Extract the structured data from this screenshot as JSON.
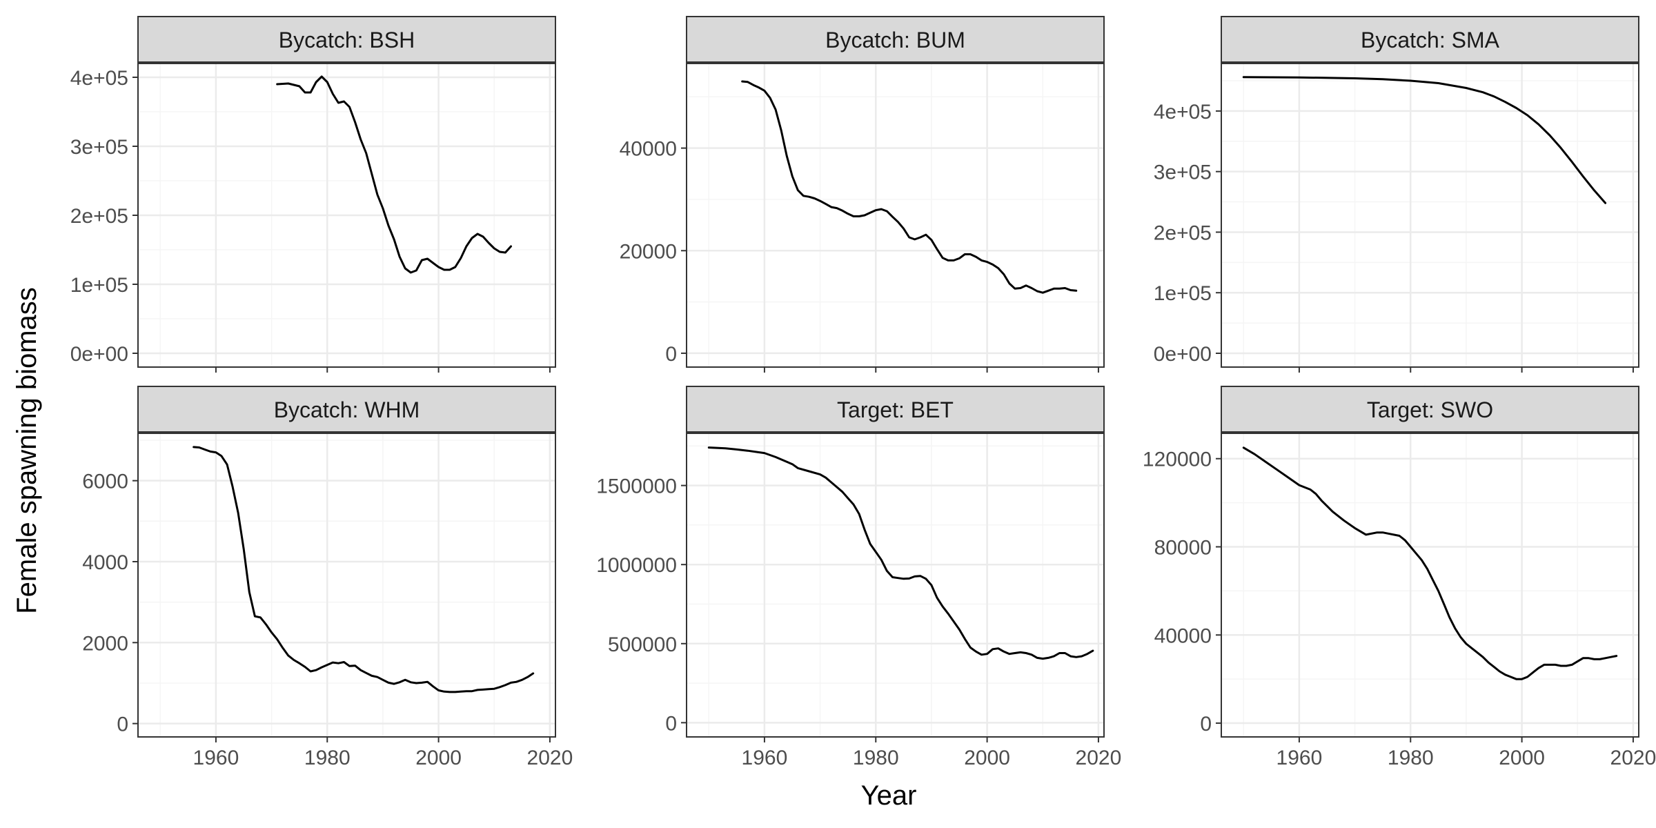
{
  "figure": {
    "ylabel": "Female spawning biomass",
    "xlabel": "Year"
  },
  "colors": {
    "line": "#000000",
    "strip_fill": "#d9d9d9",
    "strip_border": "#333333",
    "panel_border": "#333333",
    "grid_major": "#ebebeb",
    "grid_minor": "#f5f5f5",
    "tick_label": "#4d4d4d"
  },
  "chart_data": [
    {
      "type": "line",
      "title": "Bycatch: BSH",
      "xlim": [
        1946,
        2021
      ],
      "ylim": [
        -20000,
        420000
      ],
      "x_ticks": [
        1960,
        1980,
        2000,
        2020
      ],
      "y_ticks": [
        0,
        100000,
        200000,
        300000,
        400000
      ],
      "y_tick_labels": [
        "0e+00",
        "1e+05",
        "2e+05",
        "3e+05",
        "4e+05"
      ],
      "grid": true,
      "show_x_axis_labels": false,
      "x": [
        1971,
        1973,
        1975,
        1976,
        1977,
        1978,
        1979,
        1980,
        1981,
        1982,
        1983,
        1984,
        1985,
        1986,
        1987,
        1988,
        1989,
        1990,
        1991,
        1992,
        1993,
        1994,
        1995,
        1996,
        1997,
        1998,
        1999,
        2000,
        2001,
        2002,
        2003,
        2004,
        2005,
        2006,
        2007,
        2008,
        2009,
        2010,
        2011,
        2012,
        2013
      ],
      "y": [
        390000,
        391000,
        387000,
        378000,
        378000,
        393000,
        401000,
        393000,
        376000,
        363000,
        365000,
        357000,
        335000,
        310000,
        290000,
        260000,
        230000,
        210000,
        185000,
        165000,
        140000,
        123000,
        117000,
        120000,
        135000,
        137000,
        131000,
        125000,
        121000,
        121000,
        125000,
        138000,
        155000,
        167000,
        173000,
        169000,
        160000,
        152000,
        147000,
        146000,
        155000
      ]
    },
    {
      "type": "line",
      "title": "Bycatch: BUM",
      "xlim": [
        1946,
        2021
      ],
      "ylim": [
        -2700,
        56500
      ],
      "x_ticks": [
        1960,
        1980,
        2000,
        2020
      ],
      "y_ticks": [
        0,
        20000,
        40000
      ],
      "y_tick_labels": [
        "0",
        "20000",
        "40000"
      ],
      "grid": true,
      "show_x_axis_labels": false,
      "x": [
        1956,
        1957,
        1958,
        1959,
        1960,
        1961,
        1962,
        1963,
        1964,
        1965,
        1966,
        1967,
        1968,
        1969,
        1970,
        1971,
        1972,
        1973,
        1974,
        1975,
        1976,
        1977,
        1978,
        1979,
        1980,
        1981,
        1982,
        1983,
        1984,
        1985,
        1986,
        1987,
        1988,
        1989,
        1990,
        1991,
        1992,
        1993,
        1994,
        1995,
        1996,
        1997,
        1998,
        1999,
        2000,
        2001,
        2002,
        2003,
        2004,
        2005,
        2006,
        2007,
        2008,
        2009,
        2010,
        2011,
        2012,
        2013,
        2014,
        2015,
        2016
      ],
      "y": [
        53000,
        52900,
        52300,
        51800,
        51200,
        49800,
        47500,
        43500,
        38500,
        34500,
        31800,
        30700,
        30500,
        30200,
        29700,
        29100,
        28500,
        28300,
        27800,
        27200,
        26700,
        26700,
        26900,
        27400,
        27900,
        28100,
        27700,
        26600,
        25600,
        24300,
        22600,
        22200,
        22600,
        23100,
        22100,
        20300,
        18600,
        18100,
        18100,
        18500,
        19300,
        19300,
        18800,
        18100,
        17800,
        17300,
        16600,
        15400,
        13600,
        12600,
        12700,
        13200,
        12700,
        12100,
        11800,
        12200,
        12600,
        12600,
        12700,
        12300,
        12200
      ]
    },
    {
      "type": "line",
      "title": "Bycatch: SMA",
      "xlim": [
        1946,
        2021
      ],
      "ylim": [
        -22800,
        478500
      ],
      "x_ticks": [
        1960,
        1980,
        2000,
        2020
      ],
      "y_ticks": [
        0,
        100000,
        200000,
        300000,
        400000
      ],
      "y_tick_labels": [
        "0e+00",
        "1e+05",
        "2e+05",
        "3e+05",
        "4e+05"
      ],
      "grid": true,
      "show_x_axis_labels": false,
      "x": [
        1950,
        1960,
        1970,
        1975,
        1980,
        1985,
        1990,
        1993,
        1995,
        1997,
        1999,
        2001,
        2003,
        2005,
        2007,
        2009,
        2011,
        2013,
        2015
      ],
      "y": [
        456000,
        455500,
        454000,
        452500,
        450000,
        446000,
        438000,
        431000,
        424000,
        415000,
        405000,
        393000,
        378000,
        360000,
        339000,
        316000,
        292000,
        269000,
        248000
      ]
    },
    {
      "type": "line",
      "title": "Bycatch: WHM",
      "xlim": [
        1946,
        2021
      ],
      "ylim": [
        -330,
        7170
      ],
      "x_ticks": [
        1960,
        1980,
        2000,
        2020
      ],
      "x_tick_labels": [
        "1960",
        "1980",
        "2000",
        "2020"
      ],
      "y_ticks": [
        0,
        2000,
        4000,
        6000
      ],
      "y_tick_labels": [
        "0",
        "2000",
        "4000",
        "6000"
      ],
      "grid": true,
      "show_x_axis_labels": true,
      "x": [
        1956,
        1957,
        1958,
        1959,
        1960,
        1961,
        1962,
        1963,
        1964,
        1965,
        1966,
        1967,
        1968,
        1969,
        1970,
        1971,
        1972,
        1973,
        1974,
        1975,
        1976,
        1977,
        1978,
        1979,
        1980,
        1981,
        1982,
        1983,
        1984,
        1985,
        1986,
        1987,
        1988,
        1989,
        1990,
        1991,
        1992,
        1993,
        1994,
        1995,
        1996,
        1997,
        1998,
        1999,
        2000,
        2001,
        2002,
        2003,
        2004,
        2005,
        2006,
        2007,
        2008,
        2009,
        2010,
        2011,
        2012,
        2013,
        2014,
        2015,
        2016,
        2017
      ],
      "y": [
        6830,
        6820,
        6770,
        6720,
        6700,
        6610,
        6400,
        5850,
        5200,
        4300,
        3250,
        2650,
        2620,
        2450,
        2250,
        2080,
        1870,
        1680,
        1570,
        1490,
        1400,
        1290,
        1320,
        1390,
        1450,
        1510,
        1490,
        1520,
        1420,
        1430,
        1320,
        1250,
        1180,
        1150,
        1080,
        1010,
        980,
        1020,
        1080,
        1020,
        1000,
        1010,
        1030,
        920,
        820,
        790,
        780,
        780,
        790,
        800,
        800,
        830,
        840,
        850,
        860,
        900,
        950,
        1010,
        1030,
        1080,
        1150,
        1240
      ]
    },
    {
      "type": "line",
      "title": "Target: BET",
      "xlim": [
        1946,
        2021
      ],
      "ylim": [
        -90000,
        1830000
      ],
      "x_ticks": [
        1960,
        1980,
        2000,
        2020
      ],
      "x_tick_labels": [
        "1960",
        "1980",
        "2000",
        "2020"
      ],
      "y_ticks": [
        0,
        500000,
        1000000,
        1500000
      ],
      "y_tick_labels": [
        "0",
        "500000",
        "1000000",
        "1500000"
      ],
      "grid": true,
      "show_x_axis_labels": true,
      "x": [
        1950,
        1953,
        1955,
        1957,
        1959,
        1960,
        1962,
        1964,
        1965,
        1966,
        1968,
        1970,
        1971,
        1972,
        1973,
        1974,
        1975,
        1976,
        1977,
        1978,
        1979,
        1980,
        1981,
        1982,
        1983,
        1984,
        1985,
        1986,
        1987,
        1988,
        1989,
        1990,
        1991,
        1992,
        1993,
        1994,
        1995,
        1996,
        1997,
        1998,
        1999,
        2000,
        2001,
        2002,
        2003,
        2004,
        2005,
        2006,
        2007,
        2008,
        2009,
        2010,
        2011,
        2012,
        2013,
        2014,
        2015,
        2016,
        2017,
        2018,
        2019
      ],
      "y": [
        1740000,
        1735000,
        1728000,
        1720000,
        1710000,
        1705000,
        1680000,
        1650000,
        1635000,
        1610000,
        1590000,
        1570000,
        1550000,
        1520000,
        1490000,
        1460000,
        1420000,
        1380000,
        1320000,
        1220000,
        1130000,
        1080000,
        1030000,
        960000,
        920000,
        915000,
        910000,
        912000,
        925000,
        928000,
        910000,
        870000,
        790000,
        735000,
        690000,
        640000,
        590000,
        530000,
        475000,
        450000,
        430000,
        435000,
        465000,
        470000,
        450000,
        435000,
        440000,
        445000,
        440000,
        430000,
        410000,
        405000,
        410000,
        420000,
        440000,
        440000,
        420000,
        415000,
        420000,
        435000,
        455000
      ]
    },
    {
      "type": "line",
      "title": "Target: SWO",
      "xlim": [
        1946,
        2021
      ],
      "ylim": [
        -6250,
        131500
      ],
      "x_ticks": [
        1960,
        1980,
        2000,
        2020
      ],
      "x_tick_labels": [
        "1960",
        "1980",
        "2000",
        "2020"
      ],
      "y_ticks": [
        0,
        40000,
        80000,
        120000
      ],
      "y_tick_labels": [
        "0",
        "40000",
        "80000",
        "120000"
      ],
      "grid": true,
      "show_x_axis_labels": true,
      "x": [
        1950,
        1952,
        1954,
        1956,
        1958,
        1960,
        1962,
        1963,
        1964,
        1965,
        1966,
        1968,
        1970,
        1972,
        1974,
        1975,
        1976,
        1978,
        1979,
        1980,
        1981,
        1982,
        1983,
        1984,
        1985,
        1986,
        1987,
        1988,
        1989,
        1990,
        1991,
        1992,
        1993,
        1994,
        1995,
        1996,
        1997,
        1998,
        1999,
        2000,
        2001,
        2002,
        2003,
        2004,
        2005,
        2006,
        2007,
        2008,
        2009,
        2010,
        2011,
        2012,
        2013,
        2014,
        2015,
        2016,
        2017
      ],
      "y": [
        125000,
        122000,
        118500,
        115000,
        111500,
        108000,
        106000,
        104000,
        101000,
        98500,
        96000,
        92000,
        88500,
        85500,
        86500,
        86500,
        86000,
        85000,
        83000,
        80000,
        77000,
        74000,
        70000,
        65000,
        60000,
        54000,
        48000,
        43000,
        39000,
        36000,
        34000,
        32000,
        30000,
        27500,
        25500,
        23500,
        22000,
        21000,
        20000,
        20000,
        21000,
        23000,
        25000,
        26500,
        26500,
        26500,
        26000,
        26000,
        26500,
        28000,
        29500,
        29500,
        29000,
        29000,
        29500,
        30000,
        30500
      ]
    }
  ]
}
